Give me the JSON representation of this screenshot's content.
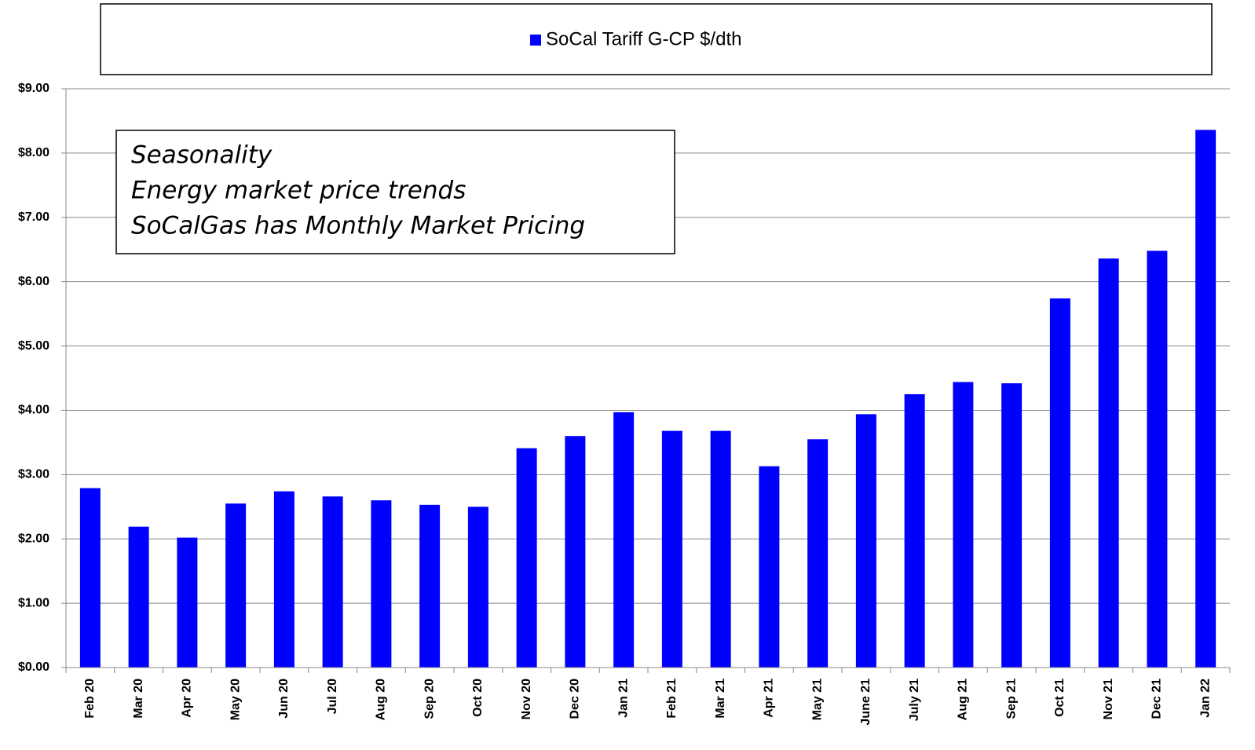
{
  "chart_data": {
    "type": "bar",
    "categories": [
      "Feb 20",
      "Mar 20",
      "Apr 20",
      "May 20",
      "Jun 20",
      "Jul 20",
      "Aug 20",
      "Sep 20",
      "Oct 20",
      "Nov 20",
      "Dec 20",
      "Jan 21",
      "Feb 21",
      "Mar 21",
      "Apr 21",
      "May 21",
      "June 21",
      "July 21",
      "Aug 21",
      "Sep 21",
      "Oct 21",
      "Nov 21",
      "Dec 21",
      "Jan 22"
    ],
    "series": [
      {
        "name": "SoCal Tariff G-CP $/dth",
        "color": "#0000ff",
        "values": [
          2.79,
          2.19,
          2.02,
          2.55,
          2.74,
          2.66,
          2.6,
          2.53,
          2.5,
          3.41,
          3.6,
          3.97,
          3.68,
          3.68,
          3.13,
          3.55,
          3.94,
          4.25,
          4.44,
          4.42,
          5.74,
          6.36,
          6.48,
          8.36
        ]
      }
    ],
    "ylim": [
      0,
      9
    ],
    "yticks": [
      {
        "value": 0,
        "label": "$0.00"
      },
      {
        "value": 1,
        "label": "$1.00"
      },
      {
        "value": 2,
        "label": "$2.00"
      },
      {
        "value": 3,
        "label": "$3.00"
      },
      {
        "value": 4,
        "label": "$4.00"
      },
      {
        "value": 5,
        "label": "$5.00"
      },
      {
        "value": 6,
        "label": "$6.00"
      },
      {
        "value": 7,
        "label": "$7.00"
      },
      {
        "value": 8,
        "label": "$8.00"
      },
      {
        "value": 9,
        "label": "$9.00"
      }
    ],
    "grid": true,
    "legend": "top",
    "annotations": [
      "Seasonality",
      "Energy market price trends",
      "SoCalGas has Monthly Market Pricing"
    ]
  }
}
